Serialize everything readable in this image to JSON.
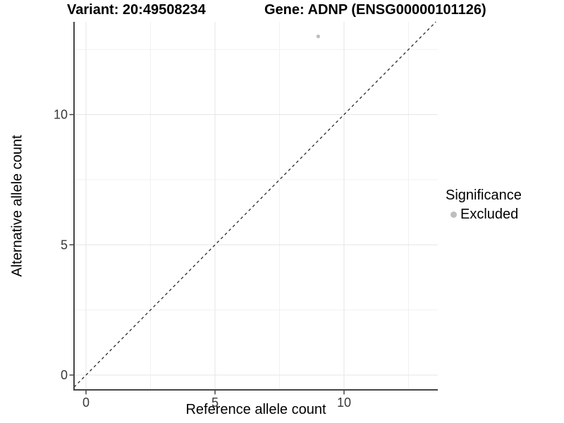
{
  "figure": {
    "title_left": "Variant: 20:49508234",
    "title_right": "Gene: ADNP (ENSG00000101126)"
  },
  "chart_data": {
    "type": "scatter",
    "title": "Variant: 20:49508234    Gene: ADNP (ENSG00000101126)",
    "xlabel": "Reference allele count",
    "ylabel": "Alternative allele count",
    "x_ticks": [
      0,
      5,
      10
    ],
    "y_ticks": [
      0,
      5,
      10
    ],
    "x_minor_gridlines": [
      2.5,
      7.5,
      12.5
    ],
    "y_minor_gridlines": [
      2.5,
      7.5,
      12.5
    ],
    "xlim": [
      -0.46,
      13.56
    ],
    "ylim": [
      -0.57,
      13.56
    ],
    "grid": true,
    "points": [
      {
        "x": 9,
        "y": 13,
        "series": "Excluded",
        "color": "#bebebe",
        "radius": 2.6
      }
    ],
    "reference_line": {
      "kind": "identity y=x",
      "style": "dashed",
      "color": "#1a1a1a"
    },
    "legend": {
      "title": "Significance",
      "position": "right",
      "entries": [
        {
          "label": "Excluded",
          "color": "#bebebe"
        }
      ]
    },
    "colors": {
      "grid_major": "#e5e5e5",
      "grid_minor": "#f1f1f1",
      "axis_line": "#454545",
      "tick_label": "#383838",
      "text": "#000000",
      "background": "#ffffff"
    }
  }
}
